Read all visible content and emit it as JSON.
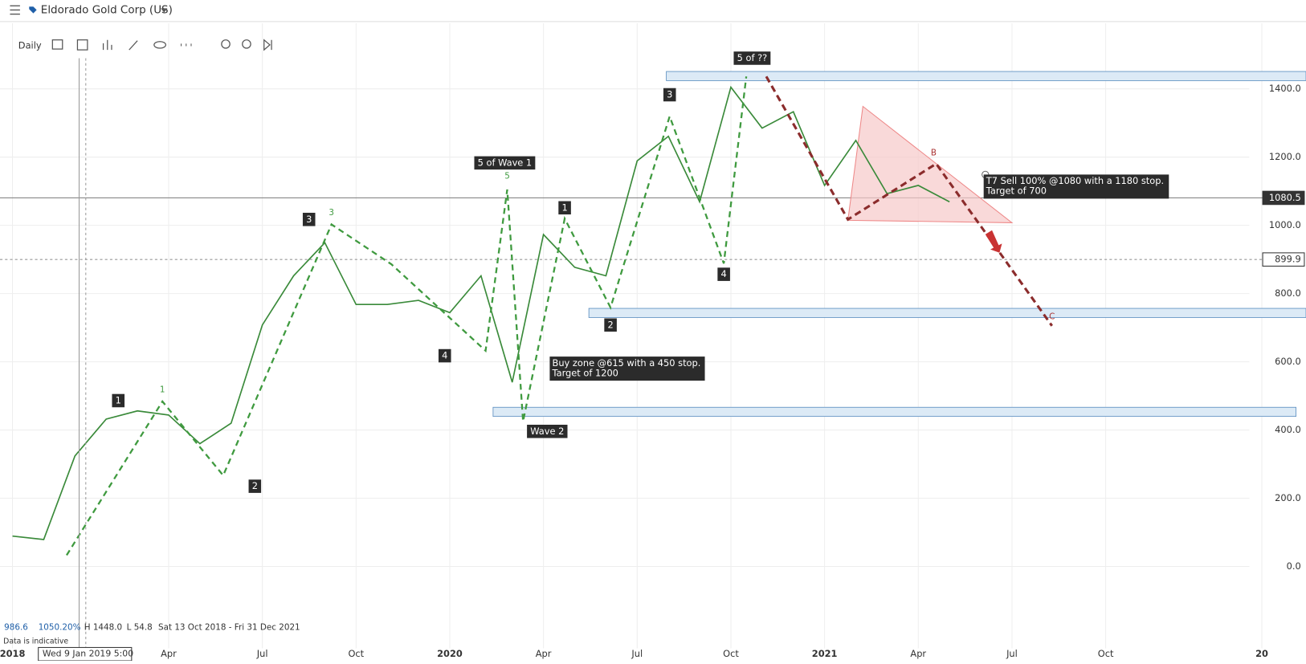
{
  "header": {
    "title": "Eldorado Gold Corp (US)",
    "interval": "Daily"
  },
  "chart_data": {
    "type": "line",
    "color": "#3a8a3a",
    "categories": [
      "2018",
      null,
      null,
      null,
      null,
      "Apr",
      null,
      null,
      "Jul",
      null,
      null,
      "Oct",
      null,
      null,
      "2020",
      null,
      null,
      "Apr",
      null,
      null,
      "Jul",
      null,
      null,
      "Oct",
      null,
      null,
      "2021",
      null,
      null,
      "Apr",
      null,
      null,
      "Jul",
      null,
      null,
      "Oct",
      null,
      null,
      null,
      null,
      "20",
      null
    ],
    "values": [
      89,
      79,
      324,
      432,
      456,
      444,
      360,
      420,
      708,
      852,
      949,
      768,
      768,
      780,
      744,
      852,
      540,
      973,
      877,
      852,
      1189,
      1261,
      1069,
      1405,
      1285,
      1333,
      1117,
      1249,
      1093,
      1117,
      1069,
      null,
      null,
      null,
      null,
      null,
      null,
      null,
      null,
      null,
      null,
      null
    ],
    "ylim": [
      -240,
      1490
    ],
    "yticks": [
      {
        "value": 0,
        "label": "0.0"
      },
      {
        "value": 200,
        "label": "200.0"
      },
      {
        "value": 400,
        "label": "400.0"
      },
      {
        "value": 600,
        "label": "600.0"
      },
      {
        "value": 800,
        "label": "800.0"
      },
      {
        "value": 1000,
        "label": "1000.0"
      },
      {
        "value": 1200,
        "label": "1200.0"
      },
      {
        "value": 1400,
        "label": "1400.0"
      }
    ],
    "grid": true,
    "price_lines": [
      1080.5,
      899.9
    ],
    "annotations": [
      {
        "text": "5 of ??",
        "style": "box"
      },
      {
        "text": "3",
        "style": "box"
      },
      {
        "text": "5 of Wave 1",
        "style": "box"
      },
      {
        "text": "5",
        "style": "green"
      },
      {
        "text": "1",
        "style": "box"
      },
      {
        "text": "3",
        "style": "box"
      },
      {
        "text": "3",
        "style": "green"
      },
      {
        "text": "4",
        "style": "box"
      },
      {
        "text": "2",
        "style": "box"
      },
      {
        "text": "1",
        "style": "box"
      },
      {
        "text": "1",
        "style": "green"
      },
      {
        "text": "2",
        "style": "box"
      },
      {
        "text": "4",
        "style": "box"
      },
      {
        "text": "Wave 2",
        "style": "box"
      },
      {
        "lines": [
          "Buy zone @615 with a 450 stop.",
          "Target of 1200"
        ],
        "style": "box"
      },
      {
        "lines": [
          "T7 Sell 100% @1080 with a 1180 stop.",
          "Target of 700"
        ],
        "style": "box"
      },
      {
        "text": "B",
        "style": "red"
      },
      {
        "text": "C",
        "style": "red"
      }
    ]
  },
  "footer": {
    "last": "986.6",
    "change": "1050.20%",
    "high": "H 1448.0",
    "low": "L 54.8",
    "range": "Sat 13 Oct 2018 - Fri 31 Dec 2021",
    "note": "Data is indicative",
    "crosshair_date": "Wed 9 Jan 2019 5:00"
  }
}
